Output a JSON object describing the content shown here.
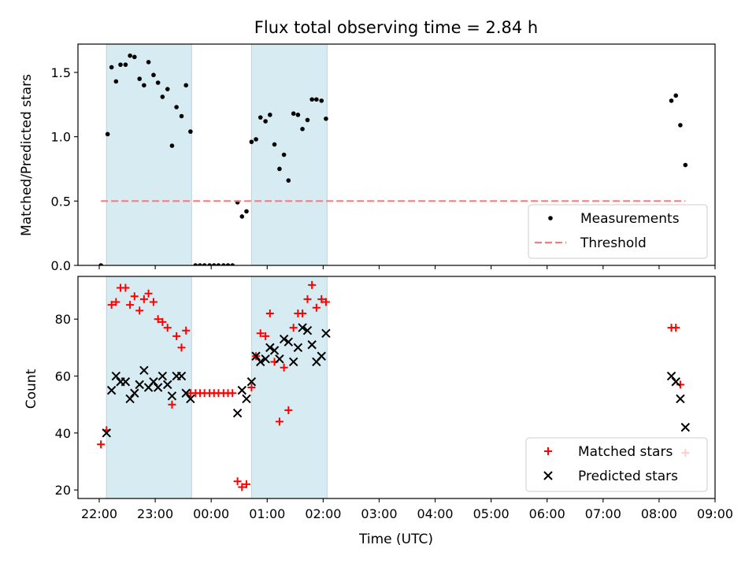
{
  "chart_data": [
    {
      "type": "scatter",
      "title": "Flux total observing time = 2.84 h",
      "ylabel": "Matched/Predicted stars",
      "xlim": [
        21.62,
        33.0
      ],
      "ylim": [
        0,
        1.72
      ],
      "yticks": [
        0.0,
        0.5,
        1.0,
        1.5
      ],
      "ytick_labels": [
        "0.0",
        "0.5",
        "1.0",
        "1.5"
      ],
      "shaded_intervals": [
        [
          22.13,
          23.65
        ],
        [
          24.72,
          26.07
        ]
      ],
      "series": [
        {
          "name": "Measurements",
          "color": "#000000",
          "marker": "dot",
          "points": [
            [
              22.03,
              0.0
            ],
            [
              22.15,
              1.02
            ],
            [
              22.22,
              1.54
            ],
            [
              22.3,
              1.43
            ],
            [
              22.38,
              1.56
            ],
            [
              22.47,
              1.56
            ],
            [
              22.55,
              1.63
            ],
            [
              22.63,
              1.62
            ],
            [
              22.72,
              1.45
            ],
            [
              22.8,
              1.4
            ],
            [
              22.88,
              1.58
            ],
            [
              22.97,
              1.48
            ],
            [
              23.05,
              1.42
            ],
            [
              23.13,
              1.31
            ],
            [
              23.22,
              1.37
            ],
            [
              23.3,
              0.93
            ],
            [
              23.38,
              1.23
            ],
            [
              23.47,
              1.16
            ],
            [
              23.55,
              1.4
            ],
            [
              23.63,
              1.04
            ],
            [
              23.72,
              0.0
            ],
            [
              23.8,
              0.0
            ],
            [
              23.88,
              0.0
            ],
            [
              23.97,
              0.0
            ],
            [
              24.05,
              0.0
            ],
            [
              24.13,
              0.0
            ],
            [
              24.22,
              0.0
            ],
            [
              24.3,
              0.0
            ],
            [
              24.38,
              0.0
            ],
            [
              24.47,
              0.49
            ],
            [
              24.55,
              0.38
            ],
            [
              24.63,
              0.42
            ],
            [
              24.72,
              0.96
            ],
            [
              24.8,
              0.98
            ],
            [
              24.88,
              1.15
            ],
            [
              24.97,
              1.12
            ],
            [
              25.05,
              1.17
            ],
            [
              25.13,
              0.94
            ],
            [
              25.22,
              0.75
            ],
            [
              25.3,
              0.86
            ],
            [
              25.38,
              0.66
            ],
            [
              25.47,
              1.18
            ],
            [
              25.55,
              1.17
            ],
            [
              25.63,
              1.06
            ],
            [
              25.72,
              1.13
            ],
            [
              25.8,
              1.29
            ],
            [
              25.88,
              1.29
            ],
            [
              25.97,
              1.28
            ],
            [
              26.05,
              1.14
            ],
            [
              32.22,
              1.28
            ],
            [
              32.3,
              1.32
            ],
            [
              32.38,
              1.09
            ],
            [
              32.47,
              0.78
            ]
          ]
        },
        {
          "name": "Threshold",
          "color": "#f08080",
          "style": "dashed",
          "points": [
            [
              22.03,
              0.5
            ],
            [
              32.47,
              0.5
            ]
          ]
        }
      ],
      "legend": {
        "position": "lower-right",
        "entries": [
          "Measurements",
          "Threshold"
        ]
      }
    },
    {
      "type": "scatter",
      "ylabel": "Count",
      "xlabel": "Time (UTC)",
      "xlim": [
        21.62,
        33.0
      ],
      "ylim": [
        17,
        95
      ],
      "yticks": [
        20,
        40,
        60,
        80
      ],
      "ytick_labels": [
        "20",
        "40",
        "60",
        "80"
      ],
      "xticks": [
        22,
        23,
        24,
        25,
        26,
        27,
        28,
        29,
        30,
        31,
        32,
        33
      ],
      "xtick_labels": [
        "22:00",
        "23:00",
        "00:00",
        "01:00",
        "02:00",
        "03:00",
        "04:00",
        "05:00",
        "06:00",
        "07:00",
        "08:00",
        "09:00"
      ],
      "shaded_intervals": [
        [
          22.13,
          23.65
        ],
        [
          24.72,
          26.07
        ]
      ],
      "series": [
        {
          "name": "Matched stars",
          "color": "#ff0000",
          "marker": "plus",
          "points": [
            [
              22.03,
              36
            ],
            [
              22.13,
              41
            ],
            [
              22.22,
              85
            ],
            [
              22.3,
              86
            ],
            [
              22.38,
              91
            ],
            [
              22.47,
              91
            ],
            [
              22.55,
              85
            ],
            [
              22.63,
              88
            ],
            [
              22.72,
              83
            ],
            [
              22.8,
              87
            ],
            [
              22.88,
              89
            ],
            [
              22.97,
              86
            ],
            [
              23.05,
              80
            ],
            [
              23.13,
              79
            ],
            [
              23.22,
              77
            ],
            [
              23.3,
              50
            ],
            [
              23.38,
              74
            ],
            [
              23.47,
              70
            ],
            [
              23.55,
              76
            ],
            [
              23.63,
              54
            ],
            [
              23.72,
              54
            ],
            [
              23.8,
              54
            ],
            [
              23.88,
              54
            ],
            [
              23.97,
              54
            ],
            [
              24.05,
              54
            ],
            [
              24.13,
              54
            ],
            [
              24.22,
              54
            ],
            [
              24.3,
              54
            ],
            [
              24.38,
              54
            ],
            [
              24.47,
              23
            ],
            [
              24.55,
              21
            ],
            [
              24.63,
              22
            ],
            [
              24.72,
              56
            ],
            [
              24.8,
              67
            ],
            [
              24.88,
              75
            ],
            [
              24.97,
              74
            ],
            [
              25.05,
              82
            ],
            [
              25.13,
              65
            ],
            [
              25.22,
              44
            ],
            [
              25.3,
              63
            ],
            [
              25.38,
              48
            ],
            [
              25.47,
              77
            ],
            [
              25.55,
              82
            ],
            [
              25.63,
              82
            ],
            [
              25.72,
              87
            ],
            [
              25.8,
              92
            ],
            [
              25.88,
              84
            ],
            [
              25.97,
              87
            ],
            [
              26.05,
              86
            ],
            [
              32.22,
              77
            ],
            [
              32.3,
              77
            ],
            [
              32.38,
              57
            ],
            [
              32.47,
              33
            ]
          ]
        },
        {
          "name": "Predicted stars",
          "color": "#000000",
          "marker": "x",
          "points": [
            [
              22.13,
              40
            ],
            [
              22.22,
              55
            ],
            [
              22.3,
              60
            ],
            [
              22.38,
              58
            ],
            [
              22.47,
              58
            ],
            [
              22.55,
              52
            ],
            [
              22.63,
              54
            ],
            [
              22.72,
              57
            ],
            [
              22.8,
              62
            ],
            [
              22.88,
              56
            ],
            [
              22.97,
              58
            ],
            [
              23.05,
              56
            ],
            [
              23.13,
              60
            ],
            [
              23.22,
              57
            ],
            [
              23.3,
              53
            ],
            [
              23.38,
              60
            ],
            [
              23.47,
              60
            ],
            [
              23.55,
              54
            ],
            [
              23.63,
              52
            ],
            [
              24.47,
              47
            ],
            [
              24.55,
              55
            ],
            [
              24.63,
              52
            ],
            [
              24.72,
              58
            ],
            [
              24.8,
              67
            ],
            [
              24.88,
              65
            ],
            [
              24.97,
              66
            ],
            [
              25.05,
              70
            ],
            [
              25.13,
              69
            ],
            [
              25.22,
              66
            ],
            [
              25.3,
              73
            ],
            [
              25.38,
              72
            ],
            [
              25.47,
              65
            ],
            [
              25.55,
              70
            ],
            [
              25.63,
              77
            ],
            [
              25.72,
              76
            ],
            [
              25.8,
              71
            ],
            [
              25.88,
              65
            ],
            [
              25.97,
              67
            ],
            [
              26.05,
              75
            ],
            [
              32.22,
              60
            ],
            [
              32.3,
              58
            ],
            [
              32.38,
              52
            ],
            [
              32.47,
              42
            ]
          ]
        }
      ],
      "legend": {
        "position": "lower-right",
        "entries": [
          "Matched stars",
          "Predicted stars"
        ]
      }
    }
  ]
}
